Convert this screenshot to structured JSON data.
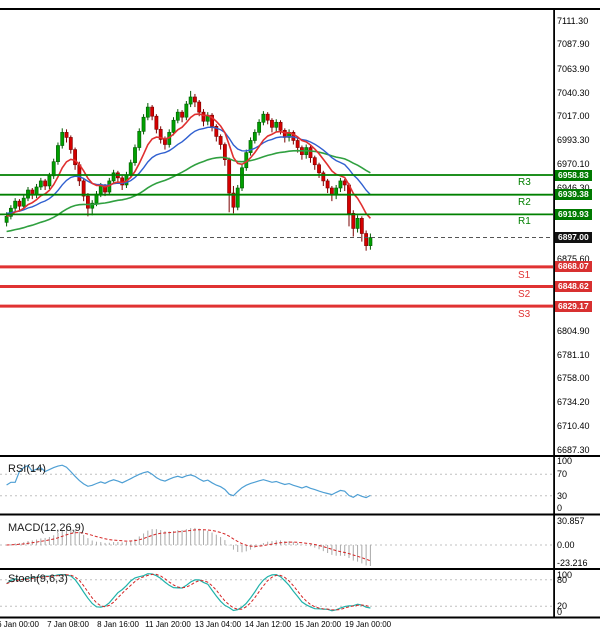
{
  "chart_data": {
    "type": "candlestick",
    "title": "",
    "current_price": {
      "text": "6897.00",
      "value": 6897.0
    },
    "price_axis_ticks": [
      {
        "text": "7111.30",
        "value": 7111.3
      },
      {
        "text": "7087.90",
        "value": 7087.9
      },
      {
        "text": "7063.90",
        "value": 7063.9
      },
      {
        "text": "7040.30",
        "value": 7040.3
      },
      {
        "text": "7017.00",
        "value": 7017.0
      },
      {
        "text": "6993.30",
        "value": 6993.3
      },
      {
        "text": "6970.10",
        "value": 6970.1
      },
      {
        "text": "6946.30",
        "value": 6946.3
      },
      {
        "text": "6875.60",
        "value": 6875.6
      },
      {
        "text": "6804.90",
        "value": 6804.9
      },
      {
        "text": "6781.10",
        "value": 6781.1
      },
      {
        "text": "6758.00",
        "value": 6758.0
      },
      {
        "text": "6734.20",
        "value": 6734.2
      },
      {
        "text": "6710.40",
        "value": 6710.4
      },
      {
        "text": "6687.30",
        "value": 6687.3
      }
    ],
    "pivots": {
      "resistance": [
        {
          "label": "R3",
          "text": "6958.83",
          "value": 6958.83
        },
        {
          "label": "R2",
          "text": "6939.38",
          "value": 6939.38
        },
        {
          "label": "R1",
          "text": "6919.93",
          "value": 6919.93
        }
      ],
      "support": [
        {
          "label": "S1",
          "text": "6868.07",
          "value": 6868.07
        },
        {
          "label": "S2",
          "text": "6848.62",
          "value": 6848.62
        },
        {
          "label": "S3",
          "text": "6829.17",
          "value": 6829.17
        }
      ]
    },
    "time_axis": [
      "6 Jan 00:00",
      "7 Jan 08:00",
      "8 Jan 16:00",
      "11 Jan 20:00",
      "13 Jan 04:00",
      "14 Jan 12:00",
      "15 Jan 20:00",
      "19 Jan 00:00"
    ],
    "indicators": {
      "rsi": {
        "label": "RSI(14)",
        "axis": [
          "100",
          "70",
          "30",
          "0"
        ],
        "levels": [
          100,
          70,
          30,
          0
        ]
      },
      "macd": {
        "label": "MACD(12,26,9)",
        "axis": [
          "30.857",
          "0.00",
          "-23.216"
        ],
        "axis_values": [
          30.857,
          0,
          -23.216
        ]
      },
      "stoch": {
        "label": "Stoch(9,6,3)",
        "axis": [
          "100",
          "80",
          "20",
          "0"
        ],
        "levels": [
          100,
          80,
          20,
          0
        ]
      }
    },
    "colors": {
      "up": "#00a000",
      "up_stroke": "#005a00",
      "down": "#d40000",
      "down_stroke": "#7a0000",
      "ma_fast": "#e03030",
      "ma_mid": "#3060d0",
      "ma_slow": "#30a040",
      "resistance": "#008000",
      "resistance_badge": "#007a00",
      "support": "#e03232",
      "support_badge": "#d83030",
      "current": "#111111",
      "rsi_line": "#4e9fd4",
      "macd_hist": "#aaaaaa",
      "macd_signal": "#d42222",
      "stoch_main": "#20b2aa",
      "stoch_signal": "#d42222",
      "separator": "#000000",
      "level_dash": "#c0c0c0"
    },
    "candles": [
      [
        6912,
        6922,
        6908,
        6918
      ],
      [
        6918,
        6929,
        6915,
        6926
      ],
      [
        6926,
        6936,
        6923,
        6933
      ],
      [
        6933,
        6935,
        6924,
        6928
      ],
      [
        6928,
        6939,
        6925,
        6936
      ],
      [
        6936,
        6947,
        6933,
        6944
      ],
      [
        6944,
        6946,
        6935,
        6939
      ],
      [
        6939,
        6950,
        6936,
        6947
      ],
      [
        6947,
        6956,
        6944,
        6953
      ],
      [
        6953,
        6955,
        6944,
        6948
      ],
      [
        6948,
        6961,
        6945,
        6958
      ],
      [
        6958,
        6975,
        6955,
        6972
      ],
      [
        6972,
        6991,
        6969,
        6988
      ],
      [
        6988,
        7005,
        6985,
        7001
      ],
      [
        7001,
        7004,
        6991,
        6996
      ],
      [
        6996,
        6998,
        6980,
        6984
      ],
      [
        6984,
        6986,
        6964,
        6969
      ],
      [
        6969,
        6972,
        6948,
        6953
      ],
      [
        6953,
        6956,
        6933,
        6938
      ],
      [
        6938,
        6941,
        6918,
        6926
      ],
      [
        6926,
        6934,
        6919,
        6931
      ],
      [
        6931,
        6943,
        6928,
        6940
      ],
      [
        6940,
        6951,
        6937,
        6948
      ],
      [
        6948,
        6950,
        6938,
        6942
      ],
      [
        6942,
        6956,
        6939,
        6953
      ],
      [
        6953,
        6964,
        6950,
        6961
      ],
      [
        6961,
        6963,
        6951,
        6956
      ],
      [
        6956,
        6958,
        6944,
        6949
      ],
      [
        6949,
        6962,
        6946,
        6959
      ],
      [
        6959,
        6974,
        6956,
        6971
      ],
      [
        6971,
        6989,
        6968,
        6986
      ],
      [
        6986,
        7005,
        6983,
        7002
      ],
      [
        7002,
        7019,
        6999,
        7016
      ],
      [
        7016,
        7030,
        7013,
        7026
      ],
      [
        7026,
        7028,
        7013,
        7017
      ],
      [
        7017,
        7019,
        7000,
        7004
      ],
      [
        7004,
        7007,
        6990,
        6994
      ],
      [
        6994,
        6997,
        6984,
        6989
      ],
      [
        6989,
        7004,
        6986,
        7001
      ],
      [
        7001,
        7016,
        6998,
        7013
      ],
      [
        7013,
        7024,
        7010,
        7021
      ],
      [
        7021,
        7023,
        7011,
        7016
      ],
      [
        7016,
        7032,
        7013,
        7029
      ],
      [
        7029,
        7042,
        7026,
        7036
      ],
      [
        7036,
        7039,
        7026,
        7031
      ],
      [
        7031,
        7033,
        7017,
        7021
      ],
      [
        7021,
        7024,
        7007,
        7012
      ],
      [
        7012,
        7021,
        7008,
        7018
      ],
      [
        7018,
        7020,
        7002,
        7007
      ],
      [
        7007,
        7009,
        6992,
        6997
      ],
      [
        6997,
        6999,
        6984,
        6989
      ],
      [
        6989,
        6991,
        6968,
        6974
      ],
      [
        6974,
        6976,
        6922,
        6941
      ],
      [
        6941,
        6948,
        6921,
        6927
      ],
      [
        6927,
        6949,
        6924,
        6946
      ],
      [
        6946,
        6969,
        6943,
        6966
      ],
      [
        6966,
        6984,
        6963,
        6981
      ],
      [
        6981,
        6996,
        6978,
        6993
      ],
      [
        6993,
        7004,
        6990,
        7001
      ],
      [
        7001,
        7014,
        6998,
        7011
      ],
      [
        7011,
        7022,
        7008,
        7019
      ],
      [
        7019,
        7021,
        7009,
        7013
      ],
      [
        7013,
        7015,
        7001,
        7006
      ],
      [
        7006,
        7014,
        7002,
        7011
      ],
      [
        7011,
        7013,
        6999,
        7003
      ],
      [
        7003,
        7005,
        6991,
        6996
      ],
      [
        6996,
        7004,
        6992,
        7001
      ],
      [
        7001,
        7003,
        6989,
        6993
      ],
      [
        6993,
        6995,
        6981,
        6986
      ],
      [
        6986,
        6988,
        6974,
        6979
      ],
      [
        6979,
        6989,
        6975,
        6986
      ],
      [
        6986,
        6988,
        6971,
        6976
      ],
      [
        6976,
        6978,
        6964,
        6969
      ],
      [
        6969,
        6971,
        6956,
        6961
      ],
      [
        6961,
        6963,
        6948,
        6953
      ],
      [
        6953,
        6955,
        6941,
        6946
      ],
      [
        6946,
        6948,
        6933,
        6939
      ],
      [
        6939,
        6949,
        6935,
        6946
      ],
      [
        6946,
        6956,
        6942,
        6953
      ],
      [
        6953,
        6955,
        6943,
        6949
      ],
      [
        6949,
        6951,
        6908,
        6921
      ],
      [
        6921,
        6924,
        6898,
        6906
      ],
      [
        6906,
        6919,
        6902,
        6916
      ],
      [
        6916,
        6918,
        6893,
        6901
      ],
      [
        6901,
        6904,
        6884,
        6889
      ],
      [
        6889,
        6901,
        6885,
        6897
      ]
    ]
  }
}
